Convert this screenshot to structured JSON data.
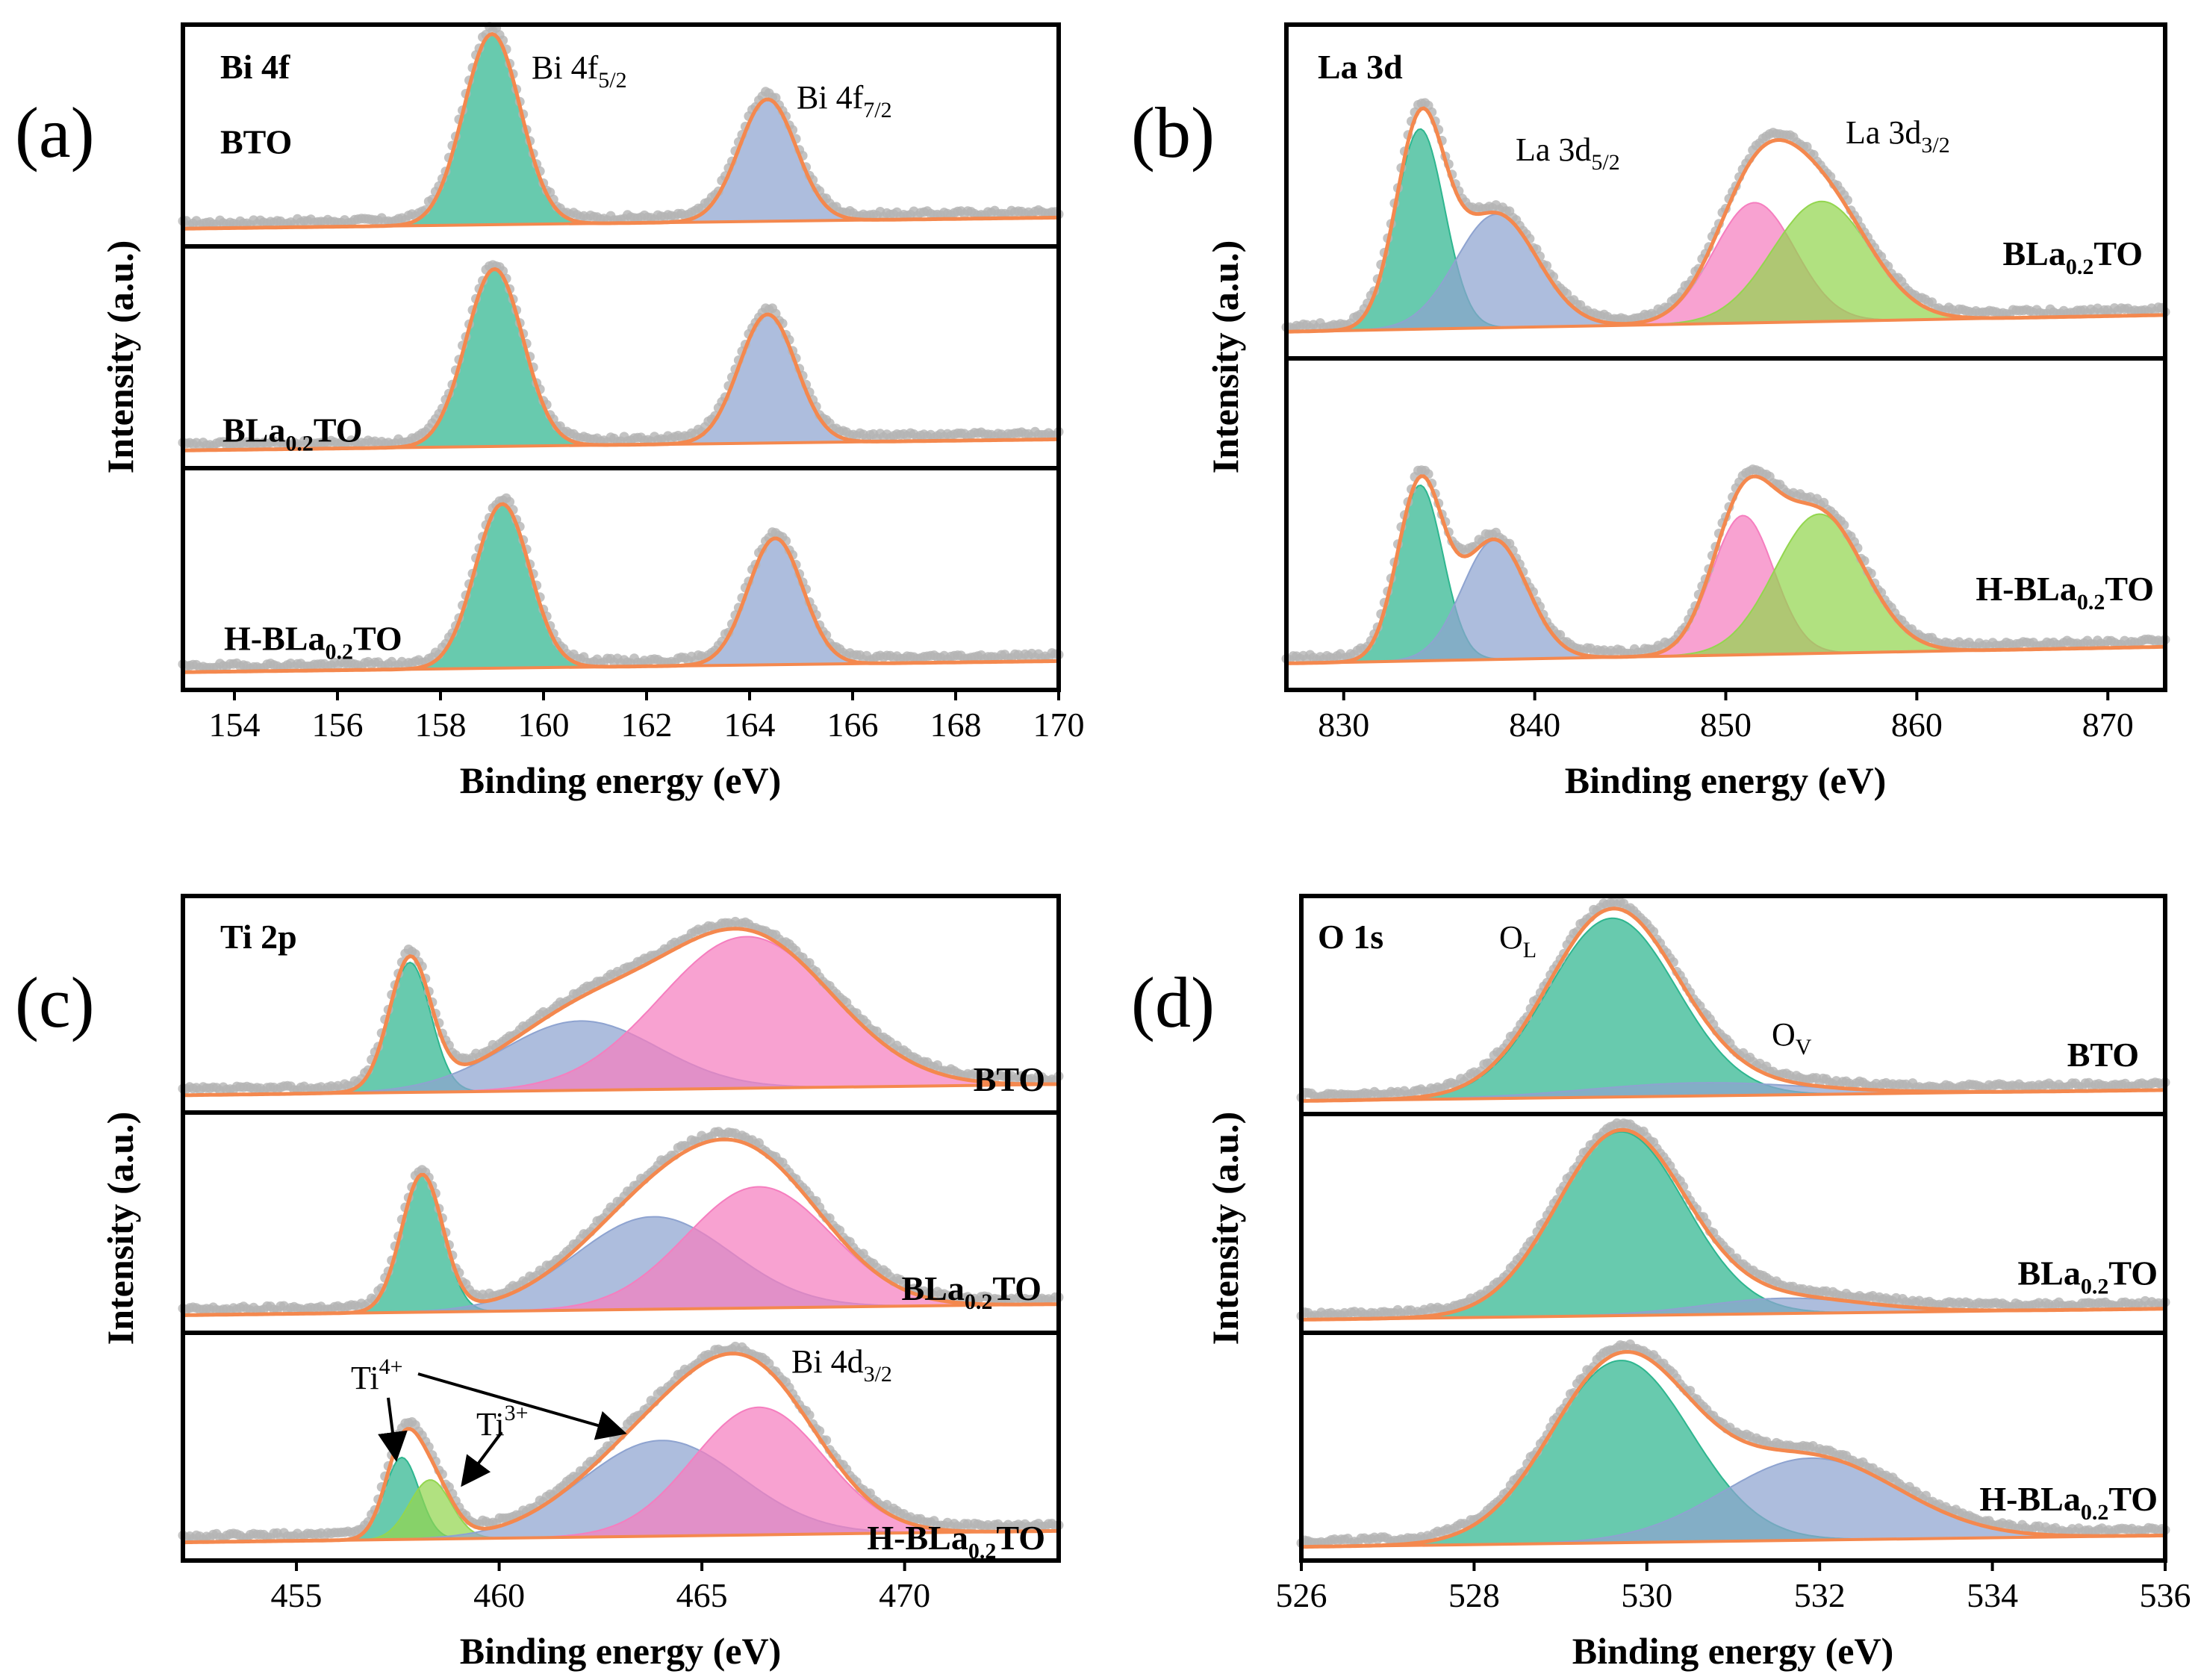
{
  "figure": {
    "colors": {
      "data_points": "#b4b4b4",
      "envelope": "#f4884e",
      "baseline": "#f4884e",
      "teal": "#2eb68f",
      "blue": "#8ea3d0",
      "pink": "#f57ebf",
      "green": "#93d64f",
      "frame": "#000000"
    }
  },
  "chart_data": [
    {
      "id": "a",
      "type": "line",
      "panel_letter": "(a)",
      "core_level": "Bi 4f",
      "xlabel": "Binding energy (eV)",
      "ylabel": "Intensity (a.u.)",
      "xlim": [
        153,
        170
      ],
      "xticks": [
        "154",
        "156",
        "158",
        "160",
        "162",
        "164",
        "166",
        "168",
        "170"
      ],
      "annotations": [
        {
          "base": "Bi 4f",
          "sub": "5/2",
          "sup": ""
        },
        {
          "base": "Bi 4f",
          "sub": "7/2",
          "sup": ""
        }
      ],
      "subpanels": [
        {
          "sample": {
            "base": "BTO",
            "sub": "",
            "tail": ""
          },
          "components": [
            {
              "name": "Bi 4f5/2",
              "center": 159.0,
              "fwhm": 1.3,
              "height": 0.86,
              "color": "teal"
            },
            {
              "name": "Bi 4f7/2",
              "center": 164.35,
              "fwhm": 1.3,
              "height": 0.55,
              "color": "blue"
            }
          ]
        },
        {
          "sample": {
            "base": "BLa",
            "sub": "0.2",
            "tail": "TO"
          },
          "components": [
            {
              "name": "Bi 4f5/2",
              "center": 159.05,
              "fwhm": 1.3,
              "height": 0.8,
              "color": "teal"
            },
            {
              "name": "Bi 4f7/2",
              "center": 164.35,
              "fwhm": 1.3,
              "height": 0.58,
              "color": "blue"
            }
          ]
        },
        {
          "sample": {
            "base": "H-BLa",
            "sub": "0.2",
            "tail": "TO"
          },
          "components": [
            {
              "name": "Bi 4f5/2",
              "center": 159.2,
              "fwhm": 1.25,
              "height": 0.74,
              "color": "teal"
            },
            {
              "name": "Bi 4f7/2",
              "center": 164.5,
              "fwhm": 1.25,
              "height": 0.57,
              "color": "blue"
            }
          ]
        }
      ]
    },
    {
      "id": "b",
      "type": "line",
      "panel_letter": "(b)",
      "core_level": "La 3d",
      "xlabel": "Binding energy (eV)",
      "ylabel": "Intensity (a.u.)",
      "xlim": [
        827,
        873
      ],
      "xticks": [
        "830",
        "840",
        "850",
        "860",
        "870"
      ],
      "annotations": [
        {
          "base": "La 3d",
          "sub": "5/2",
          "sup": ""
        },
        {
          "base": "La 3d",
          "sub": "3/2",
          "sup": ""
        }
      ],
      "subpanels": [
        {
          "sample": {
            "base": "BLa",
            "sub": "0.2",
            "tail": "TO"
          },
          "components": [
            {
              "name": "La 3d5/2 main",
              "center": 834.0,
              "fwhm": 3.0,
              "height": 0.6,
              "color": "teal"
            },
            {
              "name": "La 3d5/2 satellite",
              "center": 838.0,
              "fwhm": 5.0,
              "height": 0.34,
              "color": "blue"
            },
            {
              "name": "La 3d3/2 main",
              "center": 851.5,
              "fwhm": 5.0,
              "height": 0.36,
              "color": "pink"
            },
            {
              "name": "La 3d3/2 satellite",
              "center": 855.0,
              "fwhm": 6.0,
              "height": 0.36,
              "color": "green"
            }
          ]
        },
        {
          "sample": {
            "base": "H-BLa",
            "sub": "0.2",
            "tail": "TO"
          },
          "components": [
            {
              "name": "La 3d5/2 main",
              "center": 834.0,
              "fwhm": 2.8,
              "height": 0.53,
              "color": "teal"
            },
            {
              "name": "La 3d5/2 satellite",
              "center": 837.9,
              "fwhm": 4.0,
              "height": 0.36,
              "color": "blue"
            },
            {
              "name": "La 3d3/2 main",
              "center": 850.9,
              "fwhm": 3.8,
              "height": 0.42,
              "color": "pink"
            },
            {
              "name": "La 3d3/2 satellite",
              "center": 854.9,
              "fwhm": 5.5,
              "height": 0.42,
              "color": "green"
            }
          ]
        }
      ]
    },
    {
      "id": "c",
      "type": "line",
      "panel_letter": "(c)",
      "core_level": "Ti 2p",
      "xlabel": "Binding energy (eV)",
      "ylabel": "Intensity (a.u.)",
      "xlim": [
        452.2,
        473.8
      ],
      "xticks": [
        "455",
        "460",
        "465",
        "470"
      ],
      "annotations": [
        {
          "base": "Ti",
          "sub": "",
          "sup": "4+"
        },
        {
          "base": "Ti",
          "sub": "",
          "sup": "3+"
        },
        {
          "base": "Bi 4d",
          "sub": "3/2",
          "sup": ""
        }
      ],
      "subpanels": [
        {
          "sample": {
            "base": "BTO",
            "sub": "",
            "tail": ""
          },
          "components": [
            {
              "name": "Ti4+ 2p3/2",
              "center": 457.8,
              "fwhm": 1.2,
              "height": 0.6,
              "color": "teal"
            },
            {
              "name": "Ti4+ 2p1/2",
              "center": 462.0,
              "fwhm": 4.5,
              "height": 0.32,
              "color": "blue"
            },
            {
              "name": "Bi 4d3/2",
              "center": 466.1,
              "fwhm": 5.0,
              "height": 0.7,
              "color": "pink"
            }
          ]
        },
        {
          "sample": {
            "base": "BLa",
            "sub": "0.2",
            "tail": "TO"
          },
          "components": [
            {
              "name": "Ti4+ 2p3/2",
              "center": 458.1,
              "fwhm": 1.2,
              "height": 0.62,
              "color": "teal"
            },
            {
              "name": "Ti4+ 2p1/2",
              "center": 463.8,
              "fwhm": 4.5,
              "height": 0.42,
              "color": "blue"
            },
            {
              "name": "Bi 4d3/2",
              "center": 466.4,
              "fwhm": 4.2,
              "height": 0.55,
              "color": "pink"
            }
          ]
        },
        {
          "sample": {
            "base": "H-BLa",
            "sub": "0.2",
            "tail": "TO"
          },
          "components": [
            {
              "name": "Ti4+ 2p3/2",
              "center": 457.6,
              "fwhm": 1.0,
              "height": 0.36,
              "color": "teal"
            },
            {
              "name": "Ti3+ 2p3/2",
              "center": 458.3,
              "fwhm": 1.2,
              "height": 0.26,
              "color": "green"
            },
            {
              "name": "Ti4+ 2p1/2",
              "center": 464.0,
              "fwhm": 4.6,
              "height": 0.42,
              "color": "blue"
            },
            {
              "name": "Bi 4d3/2",
              "center": 466.4,
              "fwhm": 3.8,
              "height": 0.56,
              "color": "pink"
            }
          ]
        }
      ]
    },
    {
      "id": "d",
      "type": "line",
      "panel_letter": "(d)",
      "core_level": "O 1s",
      "xlabel": "Binding energy (eV)",
      "ylabel": "Intensity (a.u.)",
      "xlim": [
        526,
        536
      ],
      "xticks": [
        "526",
        "528",
        "530",
        "532",
        "534",
        "536"
      ],
      "annotations": [
        {
          "base": "O",
          "sub": "L",
          "sup": ""
        },
        {
          "base": "O",
          "sub": "V",
          "sup": ""
        }
      ],
      "subpanels": [
        {
          "sample": {
            "base": "BTO",
            "sub": "",
            "tail": ""
          },
          "components": [
            {
              "name": "O_L",
              "center": 529.6,
              "fwhm": 1.75,
              "height": 0.82,
              "color": "teal"
            },
            {
              "name": "O_V",
              "center": 530.6,
              "fwhm": 3.0,
              "height": 0.06,
              "color": "blue"
            }
          ]
        },
        {
          "sample": {
            "base": "BLa",
            "sub": "0.2",
            "tail": "TO"
          },
          "components": [
            {
              "name": "O_L",
              "center": 529.7,
              "fwhm": 1.75,
              "height": 0.84,
              "color": "teal"
            },
            {
              "name": "O_V",
              "center": 531.6,
              "fwhm": 2.2,
              "height": 0.07,
              "color": "blue"
            }
          ]
        },
        {
          "sample": {
            "base": "H-BLa",
            "sub": "0.2",
            "tail": "TO"
          },
          "components": [
            {
              "name": "O_L",
              "center": 529.7,
              "fwhm": 1.9,
              "height": 0.8,
              "color": "teal"
            },
            {
              "name": "O_V",
              "center": 531.9,
              "fwhm": 2.4,
              "height": 0.36,
              "color": "blue"
            }
          ]
        }
      ]
    }
  ]
}
